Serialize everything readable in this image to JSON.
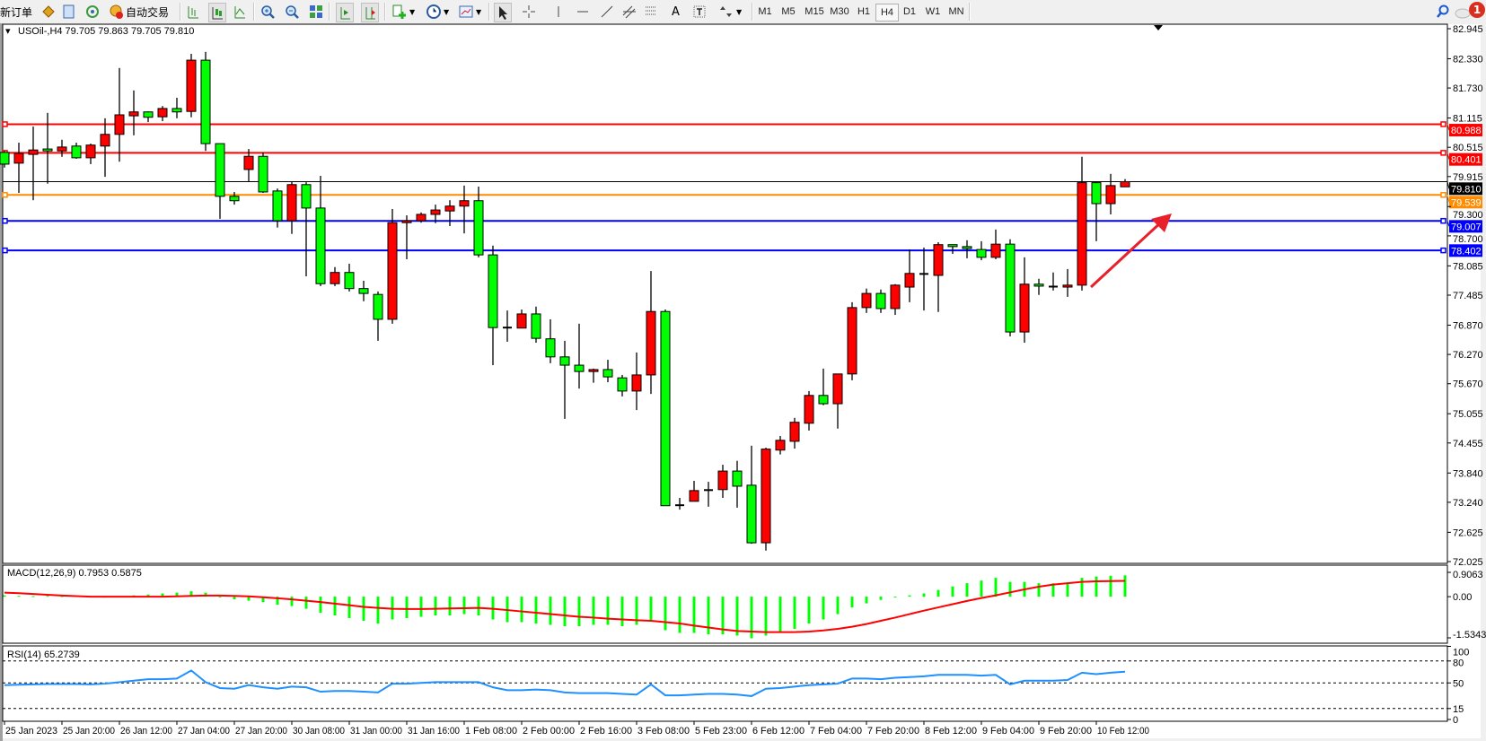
{
  "toolbar": {
    "new_order_label": "新订单",
    "auto_trading_label": "自动交易",
    "timeframes": [
      "M1",
      "M5",
      "M15",
      "M30",
      "H1",
      "H4",
      "D1",
      "W1",
      "MN"
    ],
    "active_timeframe": "H4",
    "notification_count": "1",
    "text_tool_label": "A"
  },
  "chart": {
    "header": "USOil-,H4  79.705 79.863 79.705 79.810",
    "colors": {
      "bull": "#ff0000",
      "bear": "#00ff00",
      "grid": "#000000"
    },
    "price_ticks": [
      "82.945",
      "82.330",
      "81.730",
      "81.115",
      "80.515",
      "79.915",
      "79.300",
      "78.700",
      "78.085",
      "77.485",
      "76.870",
      "76.270",
      "75.670",
      "75.055",
      "74.455",
      "73.840",
      "73.240",
      "72.625",
      "72.025"
    ],
    "price_range": [
      72.025,
      82.945
    ],
    "current_price": {
      "value": 79.81,
      "label": "79.810",
      "color": "#000000"
    },
    "hlines": [
      {
        "value": 80.988,
        "label": "80.988",
        "color": "#ff0000"
      },
      {
        "value": 80.401,
        "label": "80.401",
        "color": "#ff0000"
      },
      {
        "value": 79.539,
        "label": "79.539",
        "color": "#ff8c00"
      },
      {
        "value": 79.007,
        "label": "79.007",
        "color": "#0000ff"
      },
      {
        "value": 78.402,
        "label": "78.402",
        "color": "#0000ff"
      }
    ],
    "arrow_color": "#e8202a",
    "time_labels": [
      "25 Jan 2023",
      "25 Jan 20:00",
      "26 Jan 12:00",
      "27 Jan 04:00",
      "27 Jan 20:00",
      "30 Jan 08:00",
      "31 Jan 00:00",
      "31 Jan 16:00",
      "1 Feb 08:00",
      "2 Feb 00:00",
      "2 Feb 16:00",
      "3 Feb 08:00",
      "5 Feb 23:00",
      "6 Feb 12:00",
      "7 Feb 04:00",
      "7 Feb 20:00",
      "8 Feb 12:00",
      "9 Feb 04:00",
      "9 Feb 20:00",
      "10 Feb 12:00"
    ]
  },
  "chart_data": {
    "type": "candlestick",
    "symbol": "USOil-",
    "timeframe": "H4",
    "ohlc": [
      [
        80.41,
        80.44,
        80.1,
        80.17
      ],
      [
        80.19,
        80.61,
        79.58,
        80.39
      ],
      [
        80.37,
        80.94,
        79.43,
        80.46
      ],
      [
        80.48,
        81.22,
        79.77,
        80.44
      ],
      [
        80.44,
        80.67,
        80.32,
        80.52
      ],
      [
        80.54,
        80.61,
        80.28,
        80.3
      ],
      [
        80.3,
        80.59,
        80.17,
        80.56
      ],
      [
        80.54,
        81.11,
        79.91,
        80.78
      ],
      [
        80.78,
        82.14,
        80.22,
        81.18
      ],
      [
        81.16,
        81.68,
        80.76,
        81.24
      ],
      [
        81.24,
        81.25,
        81.03,
        81.13
      ],
      [
        81.14,
        81.36,
        81.05,
        81.31
      ],
      [
        81.31,
        81.53,
        81.11,
        81.24
      ],
      [
        81.25,
        82.43,
        81.13,
        82.3
      ],
      [
        82.3,
        82.47,
        80.44,
        80.59
      ],
      [
        80.59,
        80.59,
        79.05,
        79.51
      ],
      [
        79.51,
        79.6,
        79.34,
        79.42
      ],
      [
        80.06,
        80.48,
        79.82,
        80.33
      ],
      [
        80.33,
        80.41,
        79.58,
        79.6
      ],
      [
        79.62,
        79.67,
        78.87,
        79.01
      ],
      [
        79.01,
        79.82,
        78.74,
        79.75
      ],
      [
        79.75,
        79.8,
        77.87,
        79.27
      ],
      [
        79.27,
        79.93,
        77.67,
        77.72
      ],
      [
        77.72,
        78.06,
        77.67,
        77.95
      ],
      [
        77.95,
        78.13,
        77.56,
        77.62
      ],
      [
        77.62,
        77.78,
        77.36,
        77.52
      ],
      [
        77.5,
        77.56,
        76.55,
        76.99
      ],
      [
        76.99,
        79.25,
        76.9,
        78.97
      ],
      [
        78.97,
        79.12,
        78.22,
        79.01
      ],
      [
        79.01,
        79.18,
        78.97,
        79.14
      ],
      [
        79.14,
        79.34,
        78.96,
        79.23
      ],
      [
        79.21,
        79.43,
        78.9,
        79.31
      ],
      [
        79.31,
        79.73,
        78.75,
        79.42
      ],
      [
        79.42,
        79.71,
        78.26,
        78.31
      ],
      [
        78.31,
        78.5,
        76.05,
        76.82
      ],
      [
        76.81,
        77.17,
        76.53,
        76.82
      ],
      [
        76.81,
        77.19,
        76.81,
        77.1
      ],
      [
        77.1,
        77.25,
        76.51,
        76.6
      ],
      [
        76.59,
        76.99,
        76.09,
        76.22
      ],
      [
        76.22,
        76.55,
        74.95,
        76.05
      ],
      [
        76.05,
        76.9,
        75.57,
        75.92
      ],
      [
        75.92,
        75.98,
        75.69,
        75.96
      ],
      [
        75.96,
        76.16,
        75.7,
        75.81
      ],
      [
        75.79,
        75.85,
        75.41,
        75.52
      ],
      [
        75.52,
        76.31,
        75.13,
        75.85
      ],
      [
        75.85,
        77.98,
        75.46,
        77.15
      ],
      [
        77.15,
        77.19,
        73.17,
        73.17
      ],
      [
        73.17,
        73.33,
        73.09,
        73.18
      ],
      [
        73.26,
        73.68,
        73.26,
        73.48
      ],
      [
        73.48,
        73.66,
        73.15,
        73.49
      ],
      [
        73.5,
        74.01,
        73.33,
        73.88
      ],
      [
        73.88,
        74.09,
        73.13,
        73.57
      ],
      [
        73.59,
        74.4,
        72.39,
        72.41
      ],
      [
        72.41,
        74.36,
        72.25,
        74.33
      ],
      [
        74.31,
        74.6,
        74.22,
        74.51
      ],
      [
        74.49,
        74.97,
        74.34,
        74.88
      ],
      [
        74.86,
        75.52,
        74.71,
        75.43
      ],
      [
        75.43,
        75.98,
        75.23,
        75.26
      ],
      [
        75.26,
        75.87,
        74.75,
        75.87
      ],
      [
        75.87,
        77.34,
        75.74,
        77.23
      ],
      [
        77.23,
        77.62,
        77.12,
        77.52
      ],
      [
        77.52,
        77.6,
        77.12,
        77.21
      ],
      [
        77.21,
        77.71,
        77.08,
        77.69
      ],
      [
        77.65,
        78.42,
        77.34,
        77.93
      ],
      [
        77.91,
        78.46,
        77.17,
        77.92
      ],
      [
        77.89,
        78.57,
        77.14,
        78.52
      ],
      [
        78.52,
        78.52,
        78.33,
        78.48
      ],
      [
        78.48,
        78.61,
        78.24,
        78.44
      ],
      [
        78.42,
        78.59,
        78.2,
        78.26
      ],
      [
        78.26,
        78.83,
        78.22,
        78.53
      ],
      [
        78.53,
        78.63,
        76.64,
        76.73
      ],
      [
        76.73,
        78.26,
        76.51,
        77.71
      ],
      [
        77.71,
        77.82,
        77.49,
        77.67
      ],
      [
        77.65,
        77.95,
        77.58,
        77.66
      ],
      [
        77.65,
        78.02,
        77.45,
        77.69
      ],
      [
        77.69,
        80.32,
        77.58,
        79.79
      ],
      [
        79.79,
        79.82,
        78.59,
        79.36
      ],
      [
        79.36,
        79.97,
        79.14,
        79.73
      ],
      [
        79.705,
        79.863,
        79.705,
        79.81
      ]
    ],
    "macd": {
      "label": "MACD(12,26,9) 0.7953 0.5875",
      "axis_labels": [
        "0.9063",
        "0.00",
        "-1.5343"
      ],
      "range": [
        -1.5343,
        0.9063
      ],
      "histogram_color": "#00ff00",
      "signal_color": "#ff0000",
      "histogram": [
        0.05,
        0.03,
        0.02,
        0.03,
        0.02,
        0.03,
        0.01,
        0.0,
        0.02,
        0.05,
        0.08,
        0.12,
        0.15,
        0.2,
        0.15,
        0.0,
        -0.1,
        -0.15,
        -0.2,
        -0.3,
        -0.35,
        -0.45,
        -0.6,
        -0.7,
        -0.8,
        -0.9,
        -1.0,
        -0.85,
        -0.8,
        -0.75,
        -0.7,
        -0.7,
        -0.65,
        -0.7,
        -0.85,
        -0.95,
        -0.95,
        -1.0,
        -1.05,
        -1.1,
        -1.1,
        -1.05,
        -1.05,
        -1.1,
        -1.05,
        -0.9,
        -1.25,
        -1.35,
        -1.35,
        -1.4,
        -1.4,
        -1.45,
        -1.55,
        -1.45,
        -1.35,
        -1.2,
        -1.0,
        -0.85,
        -0.65,
        -0.4,
        -0.25,
        -0.12,
        -0.02,
        0.05,
        0.12,
        0.25,
        0.38,
        0.5,
        0.6,
        0.7,
        0.55,
        0.55,
        0.5,
        0.5,
        0.5,
        0.7,
        0.75,
        0.78,
        0.7953
      ],
      "signal": [
        0.15,
        0.13,
        0.1,
        0.07,
        0.04,
        0.02,
        0.0,
        0,
        0,
        0,
        0,
        0,
        0.01,
        0.03,
        0.04,
        0.04,
        0.03,
        0.01,
        -0.02,
        -0.06,
        -0.1,
        -0.15,
        -0.2,
        -0.26,
        -0.32,
        -0.38,
        -0.42,
        -0.45,
        -0.46,
        -0.46,
        -0.45,
        -0.44,
        -0.43,
        -0.42,
        -0.45,
        -0.5,
        -0.55,
        -0.6,
        -0.65,
        -0.7,
        -0.75,
        -0.78,
        -0.82,
        -0.85,
        -0.88,
        -0.9,
        -0.95,
        -1.0,
        -1.08,
        -1.15,
        -1.22,
        -1.28,
        -1.3,
        -1.32,
        -1.32,
        -1.32,
        -1.3,
        -1.26,
        -1.2,
        -1.12,
        -1.02,
        -0.9,
        -0.78,
        -0.65,
        -0.52,
        -0.4,
        -0.28,
        -0.16,
        -0.05,
        0.05,
        0.16,
        0.27,
        0.37,
        0.45,
        0.5,
        0.55,
        0.57,
        0.58,
        0.5875
      ]
    },
    "rsi": {
      "label": "RSI(14) 65.2739",
      "axis_labels": [
        "100",
        "80",
        "50",
        "15",
        "0"
      ],
      "levels": [
        80,
        50,
        15
      ],
      "range": [
        0,
        100
      ],
      "color": "#1e90ff",
      "values": [
        47,
        47.5,
        48,
        48.5,
        48.5,
        48.5,
        48,
        49,
        51,
        53,
        55,
        55,
        56,
        67,
        51,
        43,
        42,
        47,
        44,
        42,
        45,
        44,
        38,
        39,
        39,
        38,
        37,
        49,
        49,
        50,
        51,
        51,
        51,
        51,
        44,
        40,
        40,
        41,
        40,
        37,
        36,
        36,
        36,
        35,
        34,
        48,
        33,
        33,
        34,
        35,
        35,
        34,
        32,
        42,
        43,
        45,
        47,
        48,
        49,
        56,
        56,
        55,
        57,
        58,
        59,
        61,
        61,
        61,
        60,
        61,
        48,
        53,
        53,
        53,
        54,
        64,
        62,
        64,
        65.2739
      ]
    }
  }
}
